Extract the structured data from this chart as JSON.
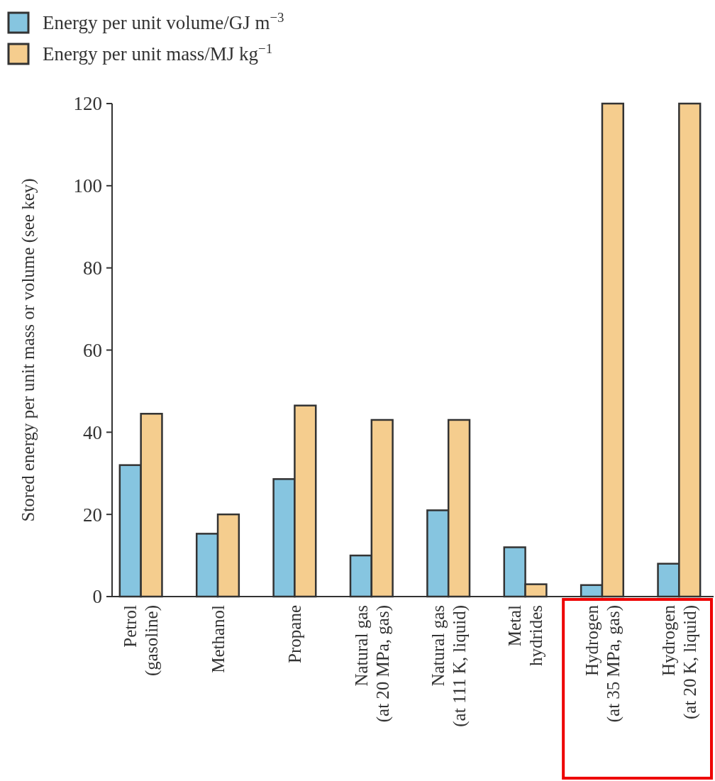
{
  "chart_data": {
    "type": "bar",
    "ylabel": "Stored energy per unit mass or volume (see key)",
    "categories": [
      "Petrol\n(gasoline)",
      "Methanol",
      "Propane",
      "Natural gas\n(at 20 MPa, gas)",
      "Natural gas\n(at 111 K, liquid)",
      "Metal\nhydrides",
      "Hydrogen\n(at 35 MPa, gas)",
      "Hydrogen\n(at 20 K, liquid)"
    ],
    "series": [
      {
        "name": "Energy per unit volume/GJ m$^{−3}$",
        "color": "#86c5e0",
        "values": [
          32,
          15.3,
          28.6,
          10,
          21,
          12,
          2.8,
          8
        ]
      },
      {
        "name": "Energy per unit mass/MJ kg$^{−1}$",
        "color": "#f5cd8e",
        "values": [
          44.5,
          20,
          46.5,
          43,
          43,
          3,
          120,
          120
        ]
      }
    ],
    "ylim": [
      0,
      120
    ],
    "yticks": [
      0,
      20,
      40,
      60,
      80,
      100,
      120
    ],
    "grid": false,
    "legend": "top left"
  }
}
